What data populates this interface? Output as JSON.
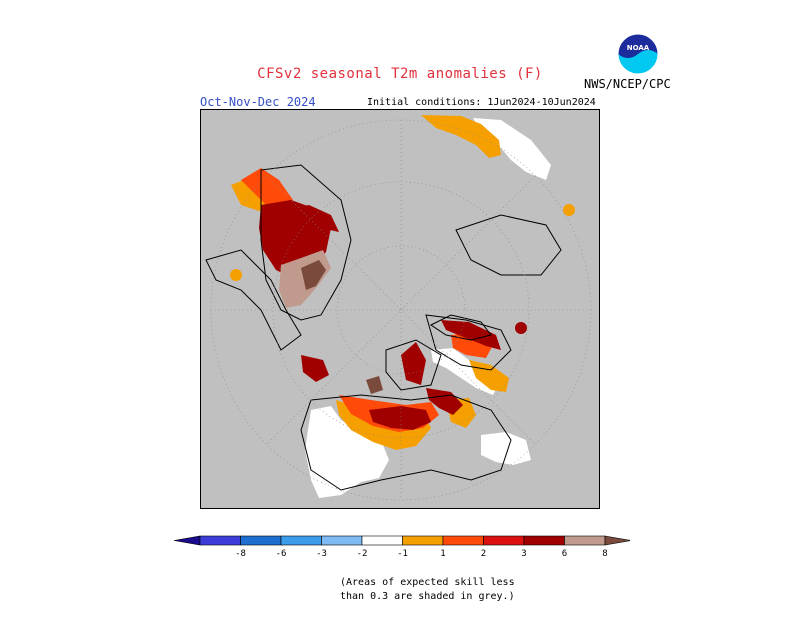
{
  "header": {
    "title": "CFSv2 seasonal T2m anomalies (F)",
    "agency": "NWS/NCEP/CPC",
    "logo_text": "NOAA",
    "period": "Oct-Nov-Dec 2024",
    "initial_conditions": "Initial conditions: 1Jun2024-10Jun2024"
  },
  "legend": {
    "ticks": [
      "-8",
      "-6",
      "-3",
      "-2",
      "-1",
      "1",
      "2",
      "3",
      "6",
      "8"
    ],
    "colors": [
      "#1a0a8c",
      "#3c3cd8",
      "#1f6fd0",
      "#3c9cec",
      "#7ebaf4",
      "#ffffff",
      "#f5a000",
      "#ff4a0a",
      "#dd1010",
      "#a00000",
      "#c09a8c",
      "#7a4a3c"
    ]
  },
  "note": {
    "line1": "(Areas of expected skill less",
    "line2": "than 0.3 are shaded in grey.)"
  },
  "map": {
    "background_color": "#c0c0c0",
    "projection": "north-polar-stereographic"
  }
}
